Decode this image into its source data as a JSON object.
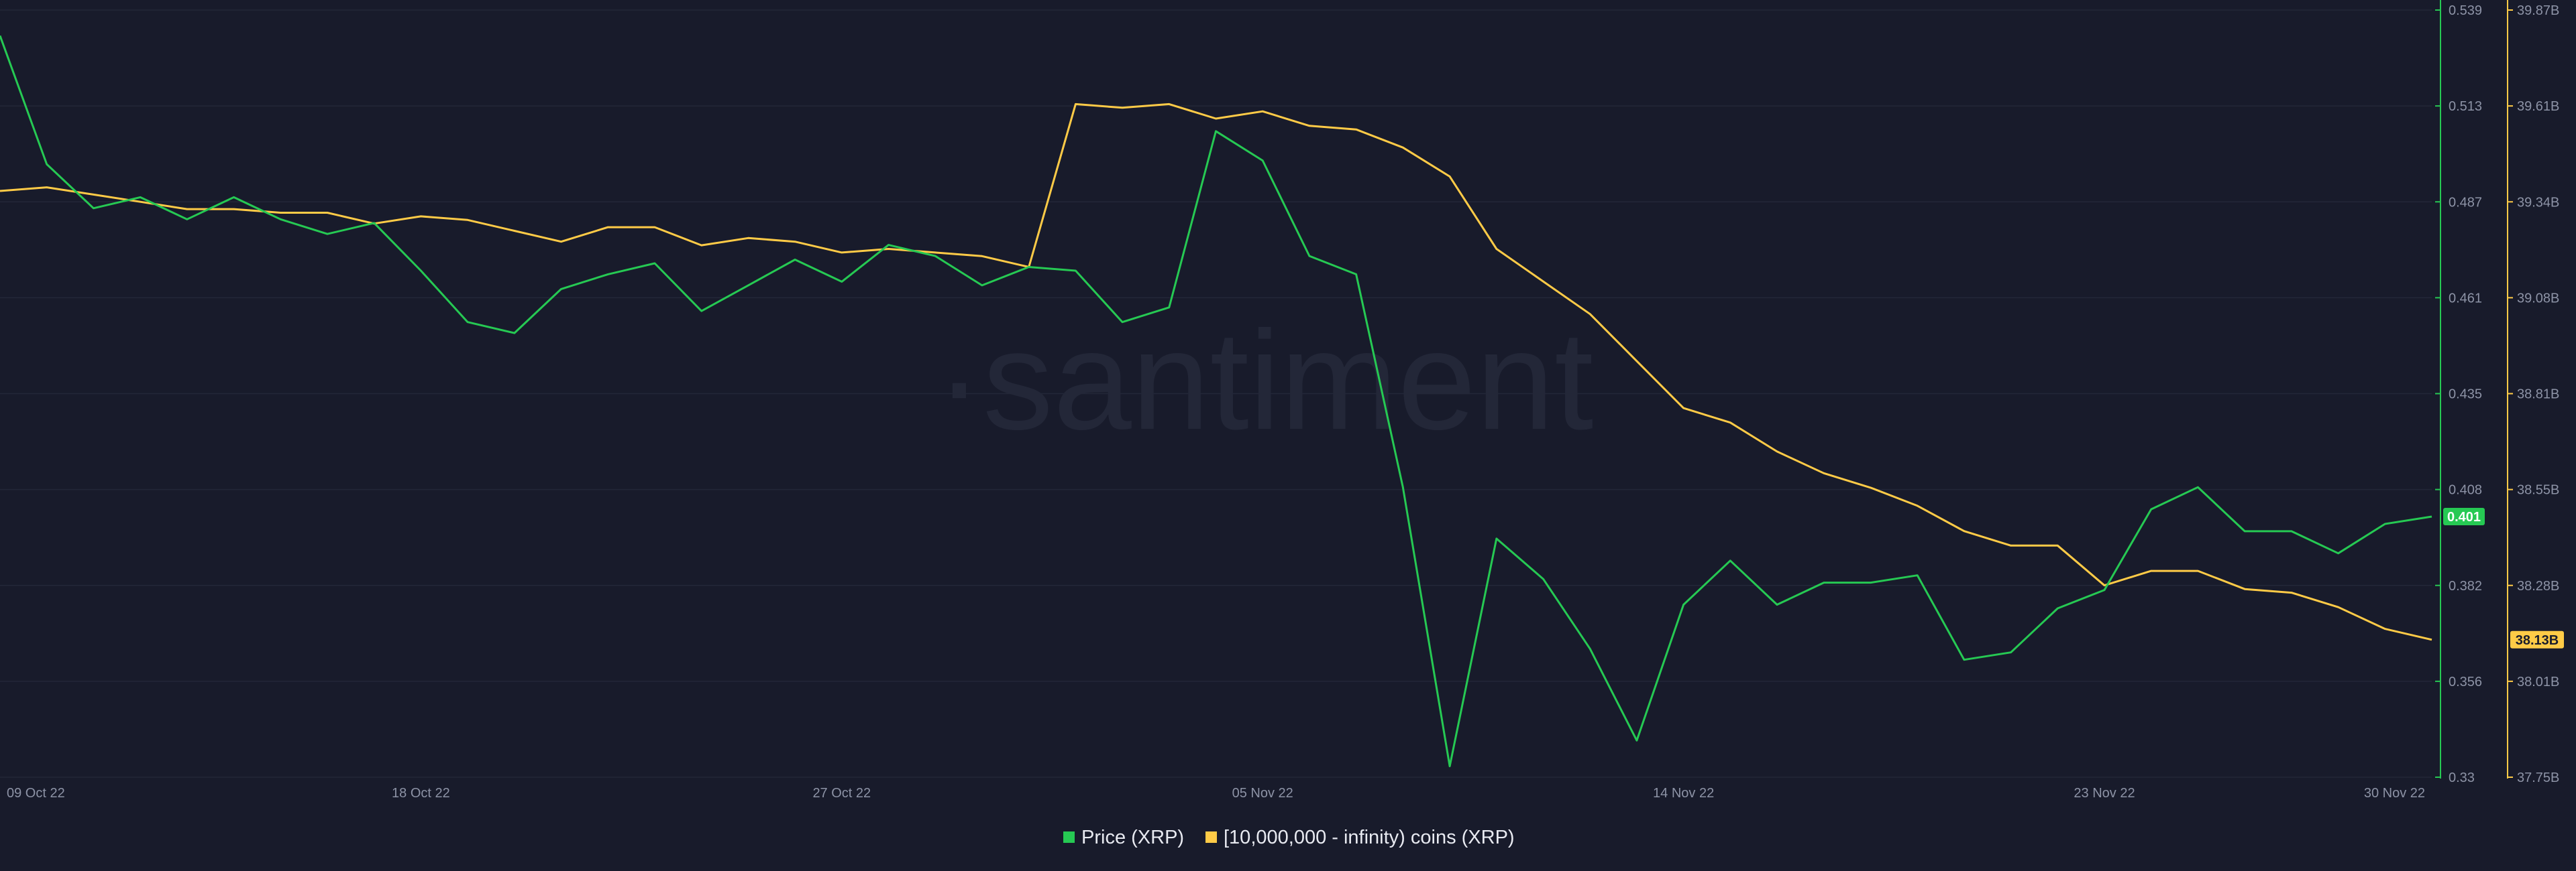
{
  "watermark": "·santiment",
  "colors": {
    "background": "#181b2b",
    "price": "#26c953",
    "holders": "#ffcb47",
    "grid": "#232738",
    "tick_text": "#8d93a6"
  },
  "chart_data": {
    "type": "line",
    "title": "",
    "grid": true,
    "legend_position": "bottom-center",
    "x": [
      "09 Oct 22",
      "10 Oct 22",
      "11 Oct 22",
      "12 Oct 22",
      "13 Oct 22",
      "14 Oct 22",
      "15 Oct 22",
      "16 Oct 22",
      "17 Oct 22",
      "18 Oct 22",
      "19 Oct 22",
      "20 Oct 22",
      "21 Oct 22",
      "22 Oct 22",
      "23 Oct 22",
      "24 Oct 22",
      "25 Oct 22",
      "26 Oct 22",
      "27 Oct 22",
      "28 Oct 22",
      "29 Oct 22",
      "30 Oct 22",
      "31 Oct 22",
      "01 Nov 22",
      "02 Nov 22",
      "03 Nov 22",
      "04 Nov 22",
      "05 Nov 22",
      "06 Nov 22",
      "07 Nov 22",
      "08 Nov 22",
      "09 Nov 22",
      "10 Nov 22",
      "11 Nov 22",
      "12 Nov 22",
      "13 Nov 22",
      "14 Nov 22",
      "15 Nov 22",
      "16 Nov 22",
      "17 Nov 22",
      "18 Nov 22",
      "19 Nov 22",
      "20 Nov 22",
      "21 Nov 22",
      "22 Nov 22",
      "23 Nov 22",
      "24 Nov 22",
      "25 Nov 22",
      "26 Nov 22",
      "27 Nov 22",
      "28 Nov 22",
      "29 Nov 22",
      "30 Nov 22"
    ],
    "x_ticks": [
      "09 Oct 22",
      "18 Oct 22",
      "27 Oct 22",
      "05 Nov 22",
      "14 Nov 22",
      "23 Nov 22",
      "30 Nov 22"
    ],
    "y_left": {
      "range": [
        0.33,
        0.539
      ],
      "ticks": [
        "0.539",
        "0.513",
        "0.487",
        "0.461",
        "0.435",
        "0.408",
        "0.382",
        "0.356",
        "0.33"
      ]
    },
    "y_right": {
      "range": [
        37.75,
        39.87
      ],
      "ticks": [
        "39.87B",
        "39.61B",
        "39.34B",
        "39.08B",
        "38.81B",
        "38.55B",
        "38.28B",
        "38.01B",
        "37.75B"
      ]
    },
    "series": [
      {
        "name": "Price (XRP)",
        "axis": "left",
        "color": "#26c953",
        "last_label": "0.401",
        "values": [
          0.532,
          0.497,
          0.485,
          0.488,
          0.482,
          0.488,
          0.482,
          0.478,
          0.481,
          0.468,
          0.454,
          0.451,
          0.463,
          0.467,
          0.47,
          0.457,
          0.464,
          0.471,
          0.465,
          0.475,
          0.472,
          0.464,
          0.469,
          0.468,
          0.454,
          0.458,
          0.506,
          0.498,
          0.472,
          0.467,
          0.409,
          0.333,
          0.395,
          0.384,
          0.365,
          0.34,
          0.377,
          0.389,
          0.377,
          0.383,
          0.383,
          0.385,
          0.362,
          0.364,
          0.376,
          0.381,
          0.403,
          0.409,
          0.397,
          0.397,
          0.391,
          0.399,
          0.401
        ]
      },
      {
        "name": "[10,000,000 - infinity) coins (XRP)",
        "axis": "right",
        "color": "#ffcb47",
        "last_label": "38.13B",
        "values": [
          39.37,
          39.38,
          39.36,
          39.34,
          39.32,
          39.32,
          39.31,
          39.31,
          39.28,
          39.3,
          39.29,
          39.26,
          39.23,
          39.27,
          39.27,
          39.22,
          39.24,
          39.23,
          39.2,
          39.21,
          39.2,
          39.19,
          39.16,
          39.61,
          39.6,
          39.61,
          39.57,
          39.59,
          39.55,
          39.54,
          39.49,
          39.41,
          39.21,
          39.12,
          39.03,
          38.9,
          38.77,
          38.73,
          38.65,
          38.59,
          38.55,
          38.5,
          38.43,
          38.39,
          38.39,
          38.28,
          38.32,
          38.32,
          38.27,
          38.26,
          38.22,
          38.16,
          38.13
        ]
      }
    ]
  }
}
